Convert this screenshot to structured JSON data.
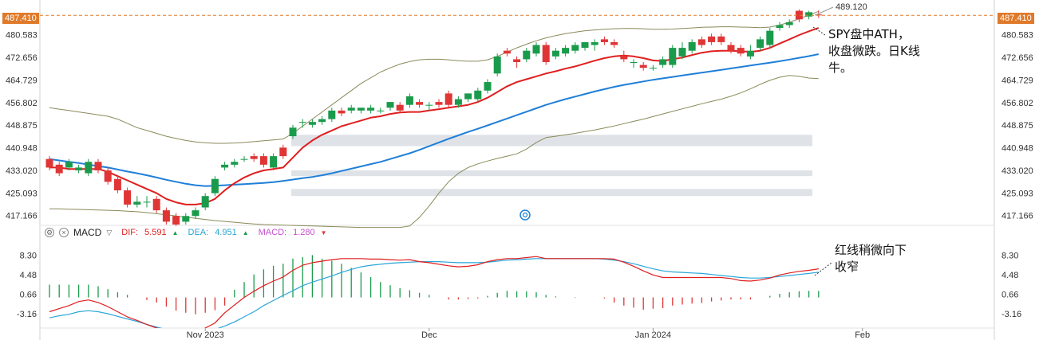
{
  "colors": {
    "up": "#1a9b4b",
    "down": "#e03535",
    "ma_fast": "#e01e1e",
    "ma_slow": "#1f7fd8",
    "bollinger": "#8a8a5a",
    "price_line": "#e07a2a",
    "dif": "#e01e1e",
    "dea": "#2aa6d8",
    "macd_hist_up": "#1a9b4b",
    "macd_hist_down": "#e03535",
    "gap_zone": "#dfe3e8"
  },
  "price_axis_labels": [
    "487.410",
    "480.583",
    "472.656",
    "464.729",
    "456.802",
    "448.875",
    "440.948",
    "433.020",
    "425.093",
    "417.166"
  ],
  "macd_axis_labels": [
    "8.30",
    "4.48",
    "0.66",
    "-3.16"
  ],
  "time_labels": [
    "Nov 2023",
    "Dec",
    "Jan 2024",
    "Feb"
  ],
  "current_price": "487.410",
  "high_label": "489.120",
  "annotation_price": [
    "SPY盘中ATH，",
    "收盘微跌。日K线",
    "牛。"
  ],
  "annotation_macd": [
    "红线稍微向下",
    "收窄"
  ],
  "toolbar": {
    "settings_icon": "gear-icon",
    "close_icon": "close-icon",
    "indicator": "MACD",
    "dif_label": "DIF:",
    "dif_value": "5.591",
    "dea_label": "DEA:",
    "dea_value": "4.951",
    "macd_label": "MACD:",
    "macd_value": "1.280"
  },
  "chart_data": [
    {
      "type": "candlestick",
      "symbol": "SPY",
      "ylim": [
        414,
        490
      ],
      "axis_ticks": [
        487.41,
        480.583,
        472.656,
        464.729,
        456.802,
        448.875,
        440.948,
        433.02,
        425.093,
        417.166
      ],
      "ohlc": [
        [
          437.0,
          438.0,
          433.0,
          434.0
        ],
        [
          435.0,
          436.0,
          431.0,
          432.0
        ],
        [
          434.0,
          437.0,
          433.0,
          436.0
        ],
        [
          433.0,
          435.0,
          432.0,
          434.0
        ],
        [
          432.0,
          437.0,
          431.0,
          436.0
        ],
        [
          436.0,
          437.0,
          432.0,
          433.0
        ],
        [
          433.0,
          434.0,
          428.0,
          429.0
        ],
        [
          430.0,
          431.0,
          425.0,
          426.0
        ],
        [
          426.0,
          427.0,
          420.0,
          421.0
        ],
        [
          421.0,
          424.0,
          420.0,
          422.0
        ],
        [
          422.0,
          424.0,
          420.0,
          422.0
        ],
        [
          423.0,
          424.0,
          418.0,
          419.0
        ],
        [
          419.0,
          420.0,
          414.0,
          415.0
        ],
        [
          417.0,
          418.0,
          413.5,
          414.0
        ],
        [
          415.0,
          418.0,
          414.0,
          417.0
        ],
        [
          417.0,
          420.0,
          416.0,
          419.0
        ],
        [
          420.0,
          425.0,
          419.0,
          424.0
        ],
        [
          425.0,
          431.0,
          424.0,
          430.0
        ],
        [
          434.0,
          436.0,
          433.0,
          435.0
        ],
        [
          435.0,
          437.0,
          434.0,
          436.0
        ],
        [
          437.0,
          438.0,
          436.0,
          437.0
        ],
        [
          438.0,
          439.0,
          436.0,
          437.0
        ],
        [
          438.0,
          439.0,
          434.0,
          435.0
        ],
        [
          434.0,
          439.0,
          433.0,
          438.0
        ],
        [
          441.0,
          442.0,
          437.0,
          438.0
        ],
        [
          445.0,
          449.0,
          444.0,
          448.0
        ],
        [
          450.0,
          451.0,
          448.0,
          450.0
        ],
        [
          449.0,
          451.0,
          448.0,
          450.0
        ],
        [
          450.0,
          452.0,
          449.0,
          451.0
        ],
        [
          451.0,
          455.0,
          450.0,
          454.0
        ],
        [
          454.0,
          455.0,
          452.0,
          453.0
        ],
        [
          454.0,
          456.0,
          453.0,
          455.0
        ],
        [
          454.0,
          455.0,
          453.0,
          455.0
        ],
        [
          454.0,
          456.0,
          453.0,
          455.0
        ],
        [
          454.0,
          455.0,
          453.0,
          454.0
        ],
        [
          455.0,
          457.0,
          454.0,
          457.0
        ],
        [
          456.0,
          457.0,
          453.0,
          454.0
        ],
        [
          456.0,
          460.0,
          455.0,
          459.0
        ],
        [
          457.0,
          458.0,
          455.0,
          456.0
        ],
        [
          456.0,
          457.0,
          454.0,
          456.0
        ],
        [
          457.0,
          458.0,
          455.0,
          456.0
        ],
        [
          460.0,
          461.0,
          455.0,
          456.0
        ],
        [
          456.0,
          459.0,
          455.0,
          458.0
        ],
        [
          458.0,
          460.0,
          457.0,
          460.0
        ],
        [
          458.0,
          462.0,
          457.0,
          461.0
        ],
        [
          461.0,
          465.0,
          460.0,
          464.0
        ],
        [
          467.0,
          474.0,
          466.0,
          473.0
        ],
        [
          475.0,
          476.0,
          473.0,
          474.0
        ],
        [
          472.0,
          473.0,
          469.0,
          471.0
        ],
        [
          472.0,
          476.0,
          471.0,
          475.0
        ],
        [
          474.0,
          478.0,
          473.0,
          477.0
        ],
        [
          477.0,
          478.0,
          470.0,
          471.0
        ],
        [
          473.0,
          476.0,
          472.0,
          475.0
        ],
        [
          474.0,
          477.0,
          473.0,
          476.0
        ],
        [
          475.0,
          478.0,
          474.0,
          477.0
        ],
        [
          476.0,
          478.0,
          475.0,
          478.0
        ],
        [
          477.0,
          479.0,
          475.0,
          478.0
        ],
        [
          479.0,
          480.0,
          477.0,
          478.0
        ],
        [
          478.0,
          479.0,
          476.0,
          477.0
        ],
        [
          473.0,
          475.0,
          471.0,
          472.0
        ],
        [
          471.0,
          472.0,
          469.0,
          471.0
        ],
        [
          470.0,
          471.0,
          468.0,
          469.0
        ],
        [
          469.0,
          470.0,
          468.0,
          469.0
        ],
        [
          470.0,
          473.0,
          469.0,
          472.0
        ],
        [
          470.0,
          477.0,
          469.0,
          476.0
        ],
        [
          473.0,
          478.0,
          472.0,
          476.0
        ],
        [
          475.0,
          479.0,
          474.0,
          478.0
        ],
        [
          479.0,
          480.0,
          476.0,
          477.0
        ],
        [
          480.0,
          481.0,
          477.0,
          478.0
        ],
        [
          480.0,
          481.0,
          477.0,
          478.0
        ],
        [
          477.0,
          478.0,
          474.0,
          475.0
        ],
        [
          476.0,
          477.0,
          473.0,
          474.0
        ],
        [
          473.0,
          477.0,
          472.0,
          475.0
        ],
        [
          476.0,
          480.0,
          475.0,
          479.0
        ],
        [
          477.0,
          483.0,
          476.0,
          482.0
        ],
        [
          483.0,
          485.0,
          482.0,
          484.0
        ],
        [
          484.0,
          486.0,
          483.0,
          485.0
        ],
        [
          489.0,
          489.5,
          485.0,
          486.0
        ],
        [
          487.0,
          489.0,
          486.0,
          488.5
        ],
        [
          487.7,
          489.12,
          486.5,
          487.41
        ]
      ],
      "ma_fast": [
        434.0,
        434.0,
        433.5,
        433.5,
        433.5,
        433.5,
        432.5,
        431.0,
        429.5,
        428.0,
        426.5,
        425.0,
        423.0,
        421.8,
        421.0,
        421.0,
        421.5,
        423.0,
        426.0,
        428.5,
        430.5,
        432.0,
        433.0,
        433.5,
        434.0,
        437.5,
        441.0,
        443.5,
        445.5,
        447.0,
        448.5,
        449.5,
        450.5,
        451.5,
        452.0,
        452.8,
        453.3,
        453.5,
        453.5,
        454.0,
        454.5,
        455.0,
        455.5,
        456.0,
        457.0,
        458.5,
        460.5,
        462.5,
        464.0,
        465.0,
        466.0,
        467.0,
        467.8,
        468.7,
        469.5,
        470.5,
        471.5,
        472.4,
        473.0,
        473.3,
        473.0,
        472.4,
        471.6,
        471.4,
        472.0,
        472.6,
        473.5,
        474.3,
        474.8,
        475.0,
        475.0,
        474.8,
        474.6,
        475.0,
        476.0,
        477.5,
        479.0,
        480.5,
        481.8,
        483.0
      ],
      "ma_slow": [
        437.0,
        436.5,
        436.0,
        435.6,
        435.0,
        434.5,
        434.0,
        433.3,
        432.6,
        432.0,
        431.3,
        430.5,
        429.7,
        429.0,
        428.3,
        427.8,
        427.5,
        427.6,
        427.8,
        428.0,
        428.2,
        428.4,
        428.6,
        428.9,
        429.3,
        429.8,
        430.3,
        430.7,
        431.3,
        432.0,
        432.8,
        433.6,
        434.4,
        435.2,
        436.0,
        437.0,
        438.0,
        439.0,
        440.2,
        441.5,
        442.8,
        444.1,
        445.3,
        446.5,
        447.6,
        448.8,
        450.0,
        451.2,
        452.4,
        453.6,
        454.8,
        456.0,
        457.0,
        458.0,
        458.9,
        459.8,
        460.7,
        461.5,
        462.3,
        463.0,
        463.6,
        464.2,
        464.8,
        465.3,
        465.8,
        466.3,
        466.8,
        467.3,
        467.8,
        468.3,
        468.8,
        469.3,
        469.8,
        470.3,
        470.8,
        471.3,
        471.9,
        472.5,
        473.1,
        473.8
      ],
      "bollinger_upper": [
        455.0,
        454.5,
        454.0,
        453.5,
        453.0,
        452.5,
        452.0,
        451.0,
        449.5,
        448.0,
        447.0,
        446.0,
        445.0,
        444.2,
        443.5,
        443.0,
        442.7,
        442.5,
        442.5,
        442.6,
        442.8,
        443.1,
        443.4,
        443.7,
        444.0,
        446.0,
        448.5,
        451.0,
        453.5,
        456.0,
        458.5,
        461.0,
        463.5,
        465.5,
        467.5,
        469.0,
        470.3,
        471.2,
        471.8,
        472.0,
        472.0,
        471.8,
        471.5,
        471.3,
        471.3,
        471.8,
        473.0,
        474.5,
        476.0,
        477.3,
        478.5,
        479.5,
        480.3,
        481.0,
        481.5,
        482.0,
        482.3,
        482.5,
        482.7,
        482.8,
        482.8,
        482.7,
        482.5,
        482.5,
        482.6,
        482.8,
        483.0,
        483.2,
        483.3,
        483.4,
        483.4,
        483.3,
        483.2,
        483.1,
        483.3,
        484.0,
        485.0,
        486.2,
        487.5,
        488.8
      ],
      "bollinger_lower": [
        419.5,
        419.5,
        419.4,
        419.3,
        419.2,
        419.1,
        419.0,
        418.9,
        418.7,
        418.5,
        418.2,
        417.8,
        417.4,
        417.0,
        416.6,
        416.2,
        415.8,
        415.4,
        415.1,
        414.8,
        414.5,
        414.2,
        414.0,
        413.9,
        413.8,
        413.7,
        413.6,
        413.5,
        413.4,
        413.3,
        413.2,
        413.1,
        413.0,
        413.0,
        413.0,
        413.0,
        413.0,
        413.5,
        416.5,
        420.5,
        425.0,
        429.0,
        432.0,
        434.0,
        435.3,
        436.3,
        437.2,
        438.0,
        438.8,
        440.5,
        442.8,
        444.5,
        445.0,
        445.5,
        446.0,
        446.6,
        447.2,
        447.9,
        448.6,
        449.4,
        450.2,
        451.0,
        451.9,
        452.8,
        453.7,
        454.6,
        455.5,
        456.4,
        457.2,
        458.0,
        459.0,
        460.2,
        461.6,
        463.2,
        464.6,
        465.7,
        466.3,
        466.0,
        465.4,
        465.2
      ],
      "gap_zones": [
        [
          441.5,
          445.5
        ],
        [
          431.0,
          433.0
        ],
        [
          424.0,
          426.5
        ]
      ]
    },
    {
      "type": "macd",
      "name": "MACD",
      "ylim": [
        -6,
        11
      ],
      "axis_ticks": [
        8.3,
        4.48,
        0.66,
        -3.16
      ],
      "dif": [
        -2.8,
        -2.2,
        -1.6,
        -0.8,
        -0.5,
        -1.0,
        -1.8,
        -2.8,
        -3.8,
        -4.5,
        -5.3,
        -6.0,
        -6.5,
        -7.0,
        -7.0,
        -6.8,
        -6.0,
        -5.0,
        -3.0,
        -1.5,
        0.0,
        1.2,
        2.3,
        3.2,
        4.0,
        5.3,
        6.3,
        6.8,
        7.1,
        7.4,
        7.6,
        7.6,
        7.6,
        7.5,
        7.5,
        7.4,
        7.3,
        7.4,
        7.0,
        6.8,
        6.5,
        6.2,
        6.0,
        6.1,
        6.4,
        7.0,
        7.4,
        7.6,
        7.6,
        7.8,
        8.0,
        7.6,
        7.6,
        7.6,
        7.6,
        7.6,
        7.6,
        7.6,
        7.5,
        6.9,
        6.1,
        5.2,
        4.4,
        3.9,
        3.9,
        3.9,
        3.9,
        3.9,
        3.9,
        3.9,
        3.7,
        3.3,
        3.2,
        3.4,
        3.8,
        4.4,
        4.8,
        5.1,
        5.3,
        5.6
      ],
      "dea": [
        -4.0,
        -3.6,
        -3.3,
        -2.8,
        -2.6,
        -2.8,
        -3.2,
        -3.7,
        -4.2,
        -4.7,
        -5.3,
        -5.8,
        -6.3,
        -6.8,
        -7.0,
        -7.0,
        -6.8,
        -6.3,
        -5.6,
        -4.8,
        -3.8,
        -2.8,
        -1.6,
        -0.6,
        0.4,
        1.3,
        2.3,
        3.0,
        3.6,
        4.2,
        4.9,
        5.5,
        6.0,
        6.3,
        6.5,
        6.7,
        6.8,
        6.9,
        7.0,
        7.0,
        7.0,
        6.9,
        6.8,
        6.8,
        6.8,
        6.9,
        7.1,
        7.3,
        7.4,
        7.5,
        7.6,
        7.6,
        7.6,
        7.6,
        7.6,
        7.6,
        7.6,
        7.5,
        7.3,
        7.0,
        6.6,
        6.1,
        5.6,
        5.2,
        5.0,
        4.9,
        4.8,
        4.7,
        4.5,
        4.3,
        4.1,
        3.9,
        3.8,
        3.8,
        3.9,
        4.1,
        4.3,
        4.5,
        4.7,
        4.951
      ],
      "histogram": [
        2.5,
        2.5,
        2.5,
        2.5,
        2.5,
        2.2,
        1.6,
        1.0,
        0.5,
        0.0,
        -0.5,
        -1.0,
        -1.8,
        -2.6,
        -3.0,
        -3.3,
        -3.0,
        -2.5,
        -1.6,
        1.5,
        3.0,
        4.5,
        5.5,
        6.2,
        6.6,
        7.6,
        7.9,
        8.3,
        7.6,
        7.2,
        6.6,
        5.8,
        4.9,
        4.0,
        3.0,
        2.4,
        1.8,
        1.4,
        0.9,
        0.5,
        0.0,
        -0.4,
        -0.4,
        -0.3,
        -0.2,
        0.3,
        0.9,
        1.3,
        1.2,
        1.2,
        1.0,
        0.5,
        0.2,
        0.0,
        -0.1,
        0.0,
        0.0,
        -0.2,
        -1.0,
        -1.6,
        -2.0,
        -2.4,
        -2.2,
        -2.1,
        -1.6,
        -1.4,
        -1.2,
        -1.1,
        -0.8,
        -0.6,
        -0.4,
        -0.4,
        -0.4,
        0.0,
        0.3,
        0.7,
        1.0,
        1.2,
        1.3,
        1.28
      ]
    }
  ]
}
